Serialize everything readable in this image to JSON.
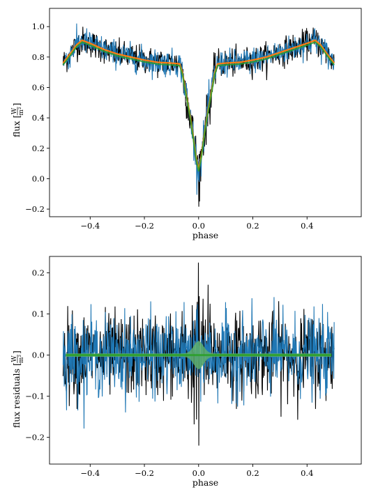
{
  "chart_data": [
    {
      "type": "line",
      "title": "",
      "xlabel": "phase",
      "ylabel": "flux",
      "ylabel_unit": {
        "num": "W",
        "den": "m²"
      },
      "xlim": [
        -0.55,
        0.6
      ],
      "ylim": [
        -0.25,
        1.12
      ],
      "xticks": [
        -0.4,
        -0.2,
        0.0,
        0.2,
        0.4
      ],
      "xtick_labels": [
        "−0.4",
        "−0.2",
        "0.0",
        "0.2",
        "0.4"
      ],
      "yticks": [
        -0.2,
        0.0,
        0.2,
        0.4,
        0.6,
        0.8,
        1.0
      ],
      "ytick_labels": [
        "−0.2",
        "0.0",
        "0.2",
        "0.4",
        "0.6",
        "0.8",
        "1.0"
      ],
      "grid": false,
      "colors": {
        "observed": "#000000",
        "samples": "#1f77b4",
        "model_fit": "#ff7f0e",
        "model_mean": "#2ca02c"
      },
      "series": [
        {
          "role": "model",
          "x": [
            -0.5,
            -0.47,
            -0.45,
            -0.43,
            -0.4,
            -0.35,
            -0.3,
            -0.25,
            -0.2,
            -0.15,
            -0.1,
            -0.07,
            -0.06,
            -0.05,
            -0.04,
            -0.03,
            -0.02,
            -0.01,
            0.0,
            0.01,
            0.02,
            0.03,
            0.04,
            0.05,
            0.06,
            0.07,
            0.1,
            0.15,
            0.2,
            0.25,
            0.3,
            0.35,
            0.4,
            0.43,
            0.45,
            0.47,
            0.5
          ],
          "values": [
            0.76,
            0.83,
            0.88,
            0.91,
            0.89,
            0.85,
            0.82,
            0.8,
            0.78,
            0.765,
            0.76,
            0.755,
            0.7,
            0.6,
            0.5,
            0.4,
            0.28,
            0.15,
            0.06,
            0.15,
            0.28,
            0.4,
            0.5,
            0.6,
            0.7,
            0.755,
            0.76,
            0.765,
            0.78,
            0.8,
            0.83,
            0.86,
            0.89,
            0.91,
            0.88,
            0.83,
            0.76
          ]
        },
        {
          "role": "observed",
          "noise_std": 0.045,
          "spike_min": -0.15,
          "spike_max": 0.97
        }
      ]
    },
    {
      "type": "line",
      "title": "",
      "xlabel": "phase",
      "ylabel": "flux residuals",
      "ylabel_unit": {
        "num": "W",
        "den": "m²"
      },
      "xlim": [
        -0.55,
        0.6
      ],
      "ylim": [
        -0.265,
        0.24
      ],
      "xticks": [
        -0.4,
        -0.2,
        0.0,
        0.2,
        0.4
      ],
      "xtick_labels": [
        "−0.4",
        "−0.2",
        "0.0",
        "0.2",
        "0.4"
      ],
      "yticks": [
        -0.2,
        -0.1,
        0.0,
        0.1,
        0.2
      ],
      "ytick_labels": [
        "−0.2",
        "−0.1",
        "0.0",
        "0.1",
        "0.2"
      ],
      "grid": false,
      "colors": {
        "observed": "#000000",
        "samples": "#1f77b4",
        "model_mean": "#2ca02c",
        "band": "#5fae6b"
      },
      "series": [
        {
          "role": "zero-line",
          "x": [
            -0.49,
            0.49
          ],
          "values": [
            0.0,
            0.0
          ]
        },
        {
          "role": "residuals",
          "noise_std": 0.05,
          "spike_max": 0.225,
          "spike_min": -0.22
        }
      ]
    }
  ]
}
